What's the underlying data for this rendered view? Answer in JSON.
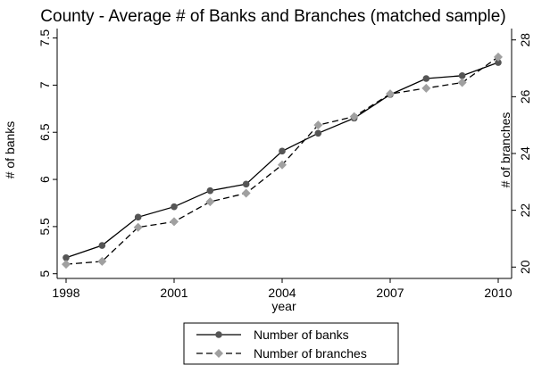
{
  "chart_data": {
    "type": "line",
    "title": "County - Average # of Banks and Branches (matched sample)",
    "xlabel": "year",
    "ylabel_left": "# of banks",
    "ylabel_right": "# of branches",
    "x": [
      1998,
      1999,
      2000,
      2001,
      2002,
      2003,
      2004,
      2005,
      2006,
      2007,
      2008,
      2009,
      2010
    ],
    "x_ticks": [
      "1998",
      "2001",
      "2004",
      "2007",
      "2010"
    ],
    "x_range": [
      1998,
      2010
    ],
    "y_left_ticks": [
      "5",
      "5.5",
      "6",
      "6.5",
      "7",
      "7.5"
    ],
    "y_left_range": [
      4.95,
      7.6
    ],
    "y_right_ticks": [
      "20",
      "22",
      "24",
      "26",
      "28"
    ],
    "y_right_range": [
      19.6,
      28.4
    ],
    "grid": false,
    "legend_position": "bottom",
    "series": [
      {
        "name": "Number of banks",
        "axis": "left",
        "style": "solid",
        "marker": "circle",
        "color": "#555555",
        "values": [
          5.17,
          5.3,
          5.6,
          5.71,
          5.88,
          5.95,
          6.3,
          6.49,
          6.65,
          6.9,
          7.07,
          7.1,
          7.24
        ]
      },
      {
        "name": "Number of branches",
        "axis": "right",
        "style": "dashed",
        "marker": "diamond",
        "color": "#a0a0a0",
        "values": [
          20.1,
          20.2,
          21.4,
          21.6,
          22.3,
          22.6,
          23.6,
          25.0,
          25.3,
          26.1,
          26.3,
          26.5,
          27.4
        ]
      }
    ]
  }
}
